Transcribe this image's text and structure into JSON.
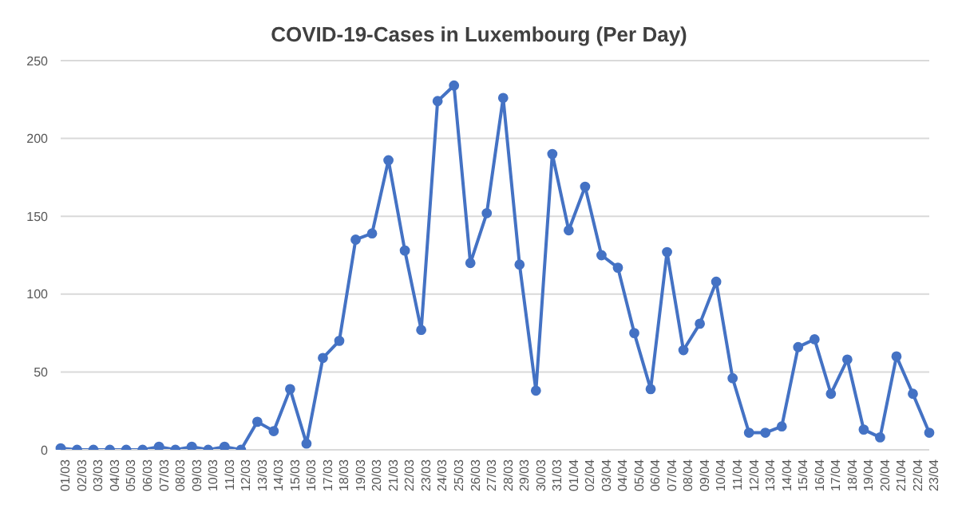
{
  "chart_data": {
    "type": "line",
    "title": "COVID-19-Cases in Luxembourg (Per Day)",
    "categories": [
      "01/03",
      "02/03",
      "03/03",
      "04/03",
      "05/03",
      "06/03",
      "07/03",
      "08/03",
      "09/03",
      "10/03",
      "11/03",
      "12/03",
      "13/03",
      "14/03",
      "15/03",
      "16/03",
      "17/03",
      "18/03",
      "19/03",
      "20/03",
      "21/03",
      "22/03",
      "23/03",
      "24/03",
      "25/03",
      "26/03",
      "27/03",
      "28/03",
      "29/03",
      "30/03",
      "31/03",
      "01/04",
      "02/04",
      "03/04",
      "04/04",
      "05/04",
      "06/04",
      "07/04",
      "08/04",
      "09/04",
      "10/04",
      "11/04",
      "12/04",
      "13/04",
      "14/04",
      "15/04",
      "16/04",
      "17/04",
      "18/04",
      "19/04",
      "20/04",
      "21/04",
      "22/04",
      "23/04"
    ],
    "series": [
      {
        "color": "#4472c4",
        "values": [
          1,
          0,
          0,
          0,
          0,
          0,
          2,
          0,
          2,
          0,
          2,
          0,
          18,
          12,
          39,
          4,
          59,
          70,
          135,
          139,
          186,
          128,
          77,
          224,
          234,
          120,
          152,
          226,
          119,
          38,
          190,
          141,
          169,
          125,
          117,
          75,
          39,
          127,
          64,
          81,
          108,
          46,
          11,
          11,
          15,
          66,
          71,
          36,
          58,
          13,
          8,
          60,
          36,
          11
        ]
      }
    ],
    "ylim": [
      0,
      250
    ],
    "yticks": [
      0,
      50,
      100,
      150,
      200,
      250
    ],
    "grid": "y",
    "legend": false,
    "marker": "circle",
    "line_style": "solid"
  }
}
